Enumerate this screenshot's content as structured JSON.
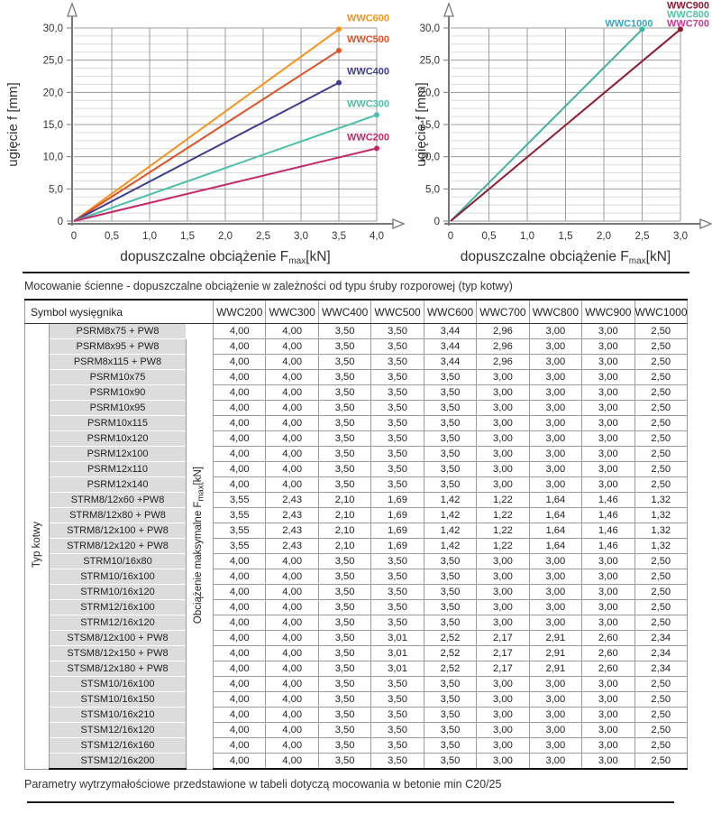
{
  "chart_data": [
    {
      "type": "line",
      "title": "",
      "ylabel": "ugięcie f [mm]",
      "xlabel_main": "dopuszczalne obciążenie F",
      "xlabel_sub": "max",
      "xlabel_unit": "[kN]",
      "xlim": [
        0,
        4
      ],
      "ylim": [
        0,
        30
      ],
      "xticks": [
        "0",
        "0,5",
        "1,0",
        "1,5",
        "2,0",
        "2,5",
        "3,0",
        "3,5",
        "4,0"
      ],
      "xtick_values": [
        0,
        0.5,
        1,
        1.5,
        2,
        2.5,
        3,
        3.5,
        4
      ],
      "yticks": [
        "0",
        "5,0",
        "10,0",
        "15,0",
        "20,0",
        "25,0",
        "30,0"
      ],
      "ytick_values": [
        0,
        5,
        10,
        15,
        20,
        25,
        30
      ],
      "grid": true,
      "minor_y_step": 1.25,
      "legend_position": "at-line-end",
      "series": [
        {
          "name": "WWC600",
          "color": "#F7941E",
          "points": [
            [
              0,
              0
            ],
            [
              3.5,
              29.8
            ]
          ]
        },
        {
          "name": "WWC500",
          "color": "#E05226",
          "points": [
            [
              0,
              0
            ],
            [
              3.5,
              26.5
            ]
          ]
        },
        {
          "name": "WWC400",
          "color": "#3E3E8F",
          "points": [
            [
              0,
              0
            ],
            [
              3.5,
              21.5
            ]
          ]
        },
        {
          "name": "WWC300",
          "color": "#4BBFA9",
          "points": [
            [
              0,
              0
            ],
            [
              4,
              16.5
            ]
          ]
        },
        {
          "name": "WWC200",
          "color": "#C52768",
          "points": [
            [
              0,
              0
            ],
            [
              4,
              11.3
            ]
          ]
        }
      ],
      "extra_labels": []
    },
    {
      "type": "line",
      "title": "",
      "ylabel": "ugięcie f [mm]",
      "xlabel_main": "dopuszczalne obciążenie F",
      "xlabel_sub": "max",
      "xlabel_unit": "[kN]",
      "xlim": [
        0,
        3
      ],
      "ylim": [
        0,
        30
      ],
      "xticks": [
        "0",
        "0,5",
        "1,0",
        "1,5",
        "2,0",
        "2,5",
        "3,0"
      ],
      "xtick_values": [
        0,
        0.5,
        1,
        1.5,
        2,
        2.5,
        3
      ],
      "yticks": [
        "0",
        "5,0",
        "10,0",
        "15,0",
        "20,0",
        "25,0",
        "30,0"
      ],
      "ytick_values": [
        0,
        5,
        10,
        15,
        20,
        25,
        30
      ],
      "grid": true,
      "minor_y_step": 1.25,
      "legend_position": "at-line-end",
      "series": [
        {
          "name": "WWC1000",
          "color": "#41B39E",
          "label_color": "#2EA8C2",
          "points": [
            [
              0,
              0
            ],
            [
              2.5,
              29.8
            ]
          ]
        },
        {
          "name": "WWC700",
          "color": "#8E1B33",
          "label_color": "#C63C92",
          "points": [
            [
              0,
              0
            ],
            [
              3,
              29.8
            ]
          ]
        }
      ],
      "extra_labels": [
        {
          "text": "WWC900",
          "color": "#8E1B33"
        },
        {
          "text": "WWC800",
          "color": "#55C3A6"
        }
      ]
    }
  ],
  "table": {
    "caption": "Mocowanie ścienne - dopuszczalne obciążenie w zależności od typu śruby rozporowej (typ kotwy)",
    "left_header": "Symbol wysięgnika",
    "group_label": "Typ kotwy",
    "vertical_label_main": "Obciążenie maksymalne F",
    "vertical_label_sub": "max",
    "vertical_label_unit": "[kN]",
    "col_headers": [
      "WWC200",
      "WWC300",
      "WWC400",
      "WWC500",
      "WWC600",
      "WWC700",
      "WWC800",
      "WWC900",
      "WWC1000"
    ],
    "rows": [
      {
        "label": "PSRM8x75 + PW8",
        "values": [
          "4,00",
          "4,00",
          "3,50",
          "3,50",
          "3,44",
          "2,96",
          "3,00",
          "3,00",
          "2,50"
        ]
      },
      {
        "label": "PSRM8x95 + PW8",
        "values": [
          "4,00",
          "4,00",
          "3,50",
          "3,50",
          "3,44",
          "2,96",
          "3,00",
          "3,00",
          "2,50"
        ]
      },
      {
        "label": "PSRM8x115 + PW8",
        "values": [
          "4,00",
          "4,00",
          "3,50",
          "3,50",
          "3,44",
          "2,96",
          "3,00",
          "3,00",
          "2,50"
        ]
      },
      {
        "label": "PSRM10x75",
        "values": [
          "4,00",
          "4,00",
          "3,50",
          "3,50",
          "3,50",
          "3,00",
          "3,00",
          "3,00",
          "2,50"
        ]
      },
      {
        "label": "PSRM10x90",
        "values": [
          "4,00",
          "4,00",
          "3,50",
          "3,50",
          "3,50",
          "3,00",
          "3,00",
          "3,00",
          "2,50"
        ]
      },
      {
        "label": "PSRM10x95",
        "values": [
          "4,00",
          "4,00",
          "3,50",
          "3,50",
          "3,50",
          "3,00",
          "3,00",
          "3,00",
          "2,50"
        ]
      },
      {
        "label": "PSRM10x115",
        "values": [
          "4,00",
          "4,00",
          "3,50",
          "3,50",
          "3,50",
          "3,00",
          "3,00",
          "3,00",
          "2,50"
        ]
      },
      {
        "label": "PSRM10x120",
        "values": [
          "4,00",
          "4,00",
          "3,50",
          "3,50",
          "3,50",
          "3,00",
          "3,00",
          "3,00",
          "2,50"
        ]
      },
      {
        "label": "PSRM12x100",
        "values": [
          "4,00",
          "4,00",
          "3,50",
          "3,50",
          "3,50",
          "3,00",
          "3,00",
          "3,00",
          "2,50"
        ]
      },
      {
        "label": "PSRM12x110",
        "values": [
          "4,00",
          "4,00",
          "3,50",
          "3,50",
          "3,50",
          "3,00",
          "3,00",
          "3,00",
          "2,50"
        ]
      },
      {
        "label": "PSRM12x140",
        "values": [
          "4,00",
          "4,00",
          "3,50",
          "3,50",
          "3,50",
          "3,00",
          "3,00",
          "3,00",
          "2,50"
        ]
      },
      {
        "label": "STRM8/12x60 +PW8",
        "values": [
          "3,55",
          "2,43",
          "2,10",
          "1,69",
          "1,42",
          "1,22",
          "1,64",
          "1,46",
          "1,32"
        ]
      },
      {
        "label": "STRM8/12x80 + PW8",
        "values": [
          "3,55",
          "2,43",
          "2,10",
          "1,69",
          "1,42",
          "1,22",
          "1,64",
          "1,46",
          "1,32"
        ]
      },
      {
        "label": "STRM8/12x100 + PW8",
        "values": [
          "3,55",
          "2,43",
          "2,10",
          "1,69",
          "1,42",
          "1,22",
          "1,64",
          "1,46",
          "1,32"
        ]
      },
      {
        "label": "STRM8/12x120 + PW8",
        "values": [
          "3,55",
          "2,43",
          "2,10",
          "1,69",
          "1,42",
          "1,22",
          "1,64",
          "1,46",
          "1,32"
        ]
      },
      {
        "label": "STRM10/16x80",
        "values": [
          "4,00",
          "4,00",
          "3,50",
          "3,50",
          "3,50",
          "3,00",
          "3,00",
          "3,00",
          "2,50"
        ]
      },
      {
        "label": "STRM10/16x100",
        "values": [
          "4,00",
          "4,00",
          "3,50",
          "3,50",
          "3,50",
          "3,00",
          "3,00",
          "3,00",
          "2,50"
        ]
      },
      {
        "label": "STRM10/16x120",
        "values": [
          "4,00",
          "4,00",
          "3,50",
          "3,50",
          "3,50",
          "3,00",
          "3,00",
          "3,00",
          "2,50"
        ]
      },
      {
        "label": "STRM12/16x100",
        "values": [
          "4,00",
          "4,00",
          "3,50",
          "3,50",
          "3,50",
          "3,00",
          "3,00",
          "3,00",
          "2,50"
        ]
      },
      {
        "label": "STRM12/16x120",
        "values": [
          "4,00",
          "4,00",
          "3,50",
          "3,50",
          "3,50",
          "3,00",
          "3,00",
          "3,00",
          "2,50"
        ]
      },
      {
        "label": "STSM8/12x100 + PW8",
        "values": [
          "4,00",
          "4,00",
          "3,50",
          "3,01",
          "2,52",
          "2,17",
          "2,91",
          "2,60",
          "2,34"
        ]
      },
      {
        "label": "STSM8/12x150 + PW8",
        "values": [
          "4,00",
          "4,00",
          "3,50",
          "3,01",
          "2,52",
          "2,17",
          "2,91",
          "2,60",
          "2,34"
        ]
      },
      {
        "label": "STSM8/12x180 + PW8",
        "values": [
          "4,00",
          "4,00",
          "3,50",
          "3,01",
          "2,52",
          "2,17",
          "2,91",
          "2,60",
          "2,34"
        ]
      },
      {
        "label": "STSM10/16x100",
        "values": [
          "4,00",
          "4,00",
          "3,50",
          "3,50",
          "3,50",
          "3,00",
          "3,00",
          "3,00",
          "2,50"
        ]
      },
      {
        "label": "STSM10/16x150",
        "values": [
          "4,00",
          "4,00",
          "3,50",
          "3,50",
          "3,50",
          "3,00",
          "3,00",
          "3,00",
          "2,50"
        ]
      },
      {
        "label": "STSM10/16x210",
        "values": [
          "4,00",
          "4,00",
          "3,50",
          "3,50",
          "3,50",
          "3,00",
          "3,00",
          "3,00",
          "2,50"
        ]
      },
      {
        "label": "STSM12/16x120",
        "values": [
          "4,00",
          "4,00",
          "3,50",
          "3,50",
          "3,50",
          "3,00",
          "3,00",
          "3,00",
          "2,50"
        ]
      },
      {
        "label": "STSM12/16x160",
        "values": [
          "4,00",
          "4,00",
          "3,50",
          "3,50",
          "3,50",
          "3,00",
          "3,00",
          "3,00",
          "2,50"
        ]
      },
      {
        "label": "STSM12/16x200",
        "values": [
          "4,00",
          "4,00",
          "3,50",
          "3,50",
          "3,50",
          "3,00",
          "3,00",
          "3,00",
          "2,50"
        ]
      }
    ]
  },
  "footer": {
    "note": "Parametry wytrzymałościowe przedstawione w tabeli dotyczą mocowania w betonie min C20/25"
  },
  "colors": {
    "grid_major": "#9c9c9c",
    "grid_minor": "#dcdcdc",
    "axis": "#777777",
    "row_label_bg": "#dcdcdc",
    "heavy_border": "#111111"
  }
}
